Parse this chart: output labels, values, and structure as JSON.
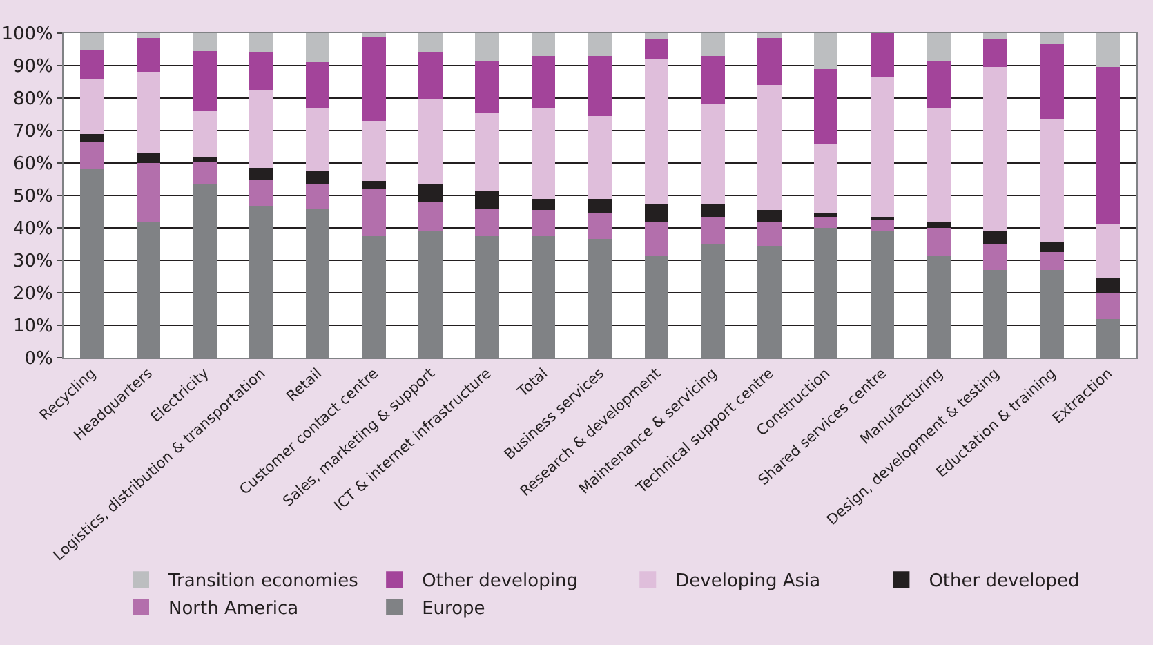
{
  "chart_data": {
    "type": "bar",
    "stacked": true,
    "categories": [
      "Recycling",
      "Headquarters",
      "Electricity",
      "Logistics, distribution & transportation",
      "Retail",
      "Customer contact centre",
      "Sales, marketing & support",
      "ICT & internet infrastructure",
      "Total",
      "Business services",
      "Research & development",
      "Maintenance & servicing",
      "Technical support centre",
      "Construction",
      "Shared services centre",
      "Manufacturing",
      "Design, development & testing",
      "Eductation & training",
      "Extraction"
    ],
    "series": [
      {
        "name": "Europe",
        "color": "#808285",
        "values": [
          58,
          42,
          53.5,
          46.5,
          46,
          37.5,
          39,
          37.5,
          37.5,
          36.5,
          31.5,
          35,
          34.5,
          40,
          39,
          31.5,
          27,
          27,
          12
        ]
      },
      {
        "name": "North America",
        "color": "#b36fac",
        "values": [
          8.5,
          18,
          7,
          8.5,
          7.5,
          14.5,
          9,
          8.5,
          8,
          8,
          10.5,
          8.5,
          7.5,
          3.5,
          3.5,
          8.5,
          8,
          5.5,
          8
        ]
      },
      {
        "name": "Other developed",
        "color": "#231f20",
        "values": [
          2.5,
          3,
          1.5,
          3.5,
          4,
          2.5,
          5.5,
          5.5,
          3.5,
          4.5,
          5.5,
          4,
          3.5,
          1,
          1,
          2,
          4,
          3,
          4.5
        ]
      },
      {
        "name": "Developing Asia",
        "color": "#dfbedb",
        "values": [
          17,
          25,
          14,
          24,
          19.5,
          18.5,
          26,
          24,
          28,
          25.5,
          44.5,
          30.5,
          38.5,
          21.5,
          43,
          35,
          50.5,
          38,
          16.5
        ]
      },
      {
        "name": "Other developing",
        "color": "#a3449a",
        "values": [
          9,
          10.5,
          18.5,
          11.5,
          14,
          26,
          14.5,
          16,
          16,
          18.5,
          6,
          15,
          14.5,
          23,
          13.5,
          14.5,
          8.5,
          23,
          48.5
        ]
      },
      {
        "name": "Transition economies",
        "color": "#bcbec0",
        "values": [
          5,
          1.5,
          5.5,
          6,
          9,
          1,
          6,
          8.5,
          7,
          7,
          2,
          7,
          1.5,
          11,
          0,
          8.5,
          2,
          3.5,
          10.5
        ]
      }
    ],
    "ylim": [
      0,
      100
    ],
    "yticks": [
      {
        "value": 0,
        "label": "0%"
      },
      {
        "value": 10,
        "label": "10%"
      },
      {
        "value": 20,
        "label": "20%"
      },
      {
        "value": 30,
        "label": "30%"
      },
      {
        "value": 40,
        "label": "40%"
      },
      {
        "value": 50,
        "label": "50%"
      },
      {
        "value": 60,
        "label": "60%"
      },
      {
        "value": 70,
        "label": "70%"
      },
      {
        "value": 80,
        "label": "80%"
      },
      {
        "value": 90,
        "label": "90%"
      },
      {
        "value": 100,
        "label": "100%"
      }
    ],
    "grid": "y",
    "legend": "bottom"
  }
}
